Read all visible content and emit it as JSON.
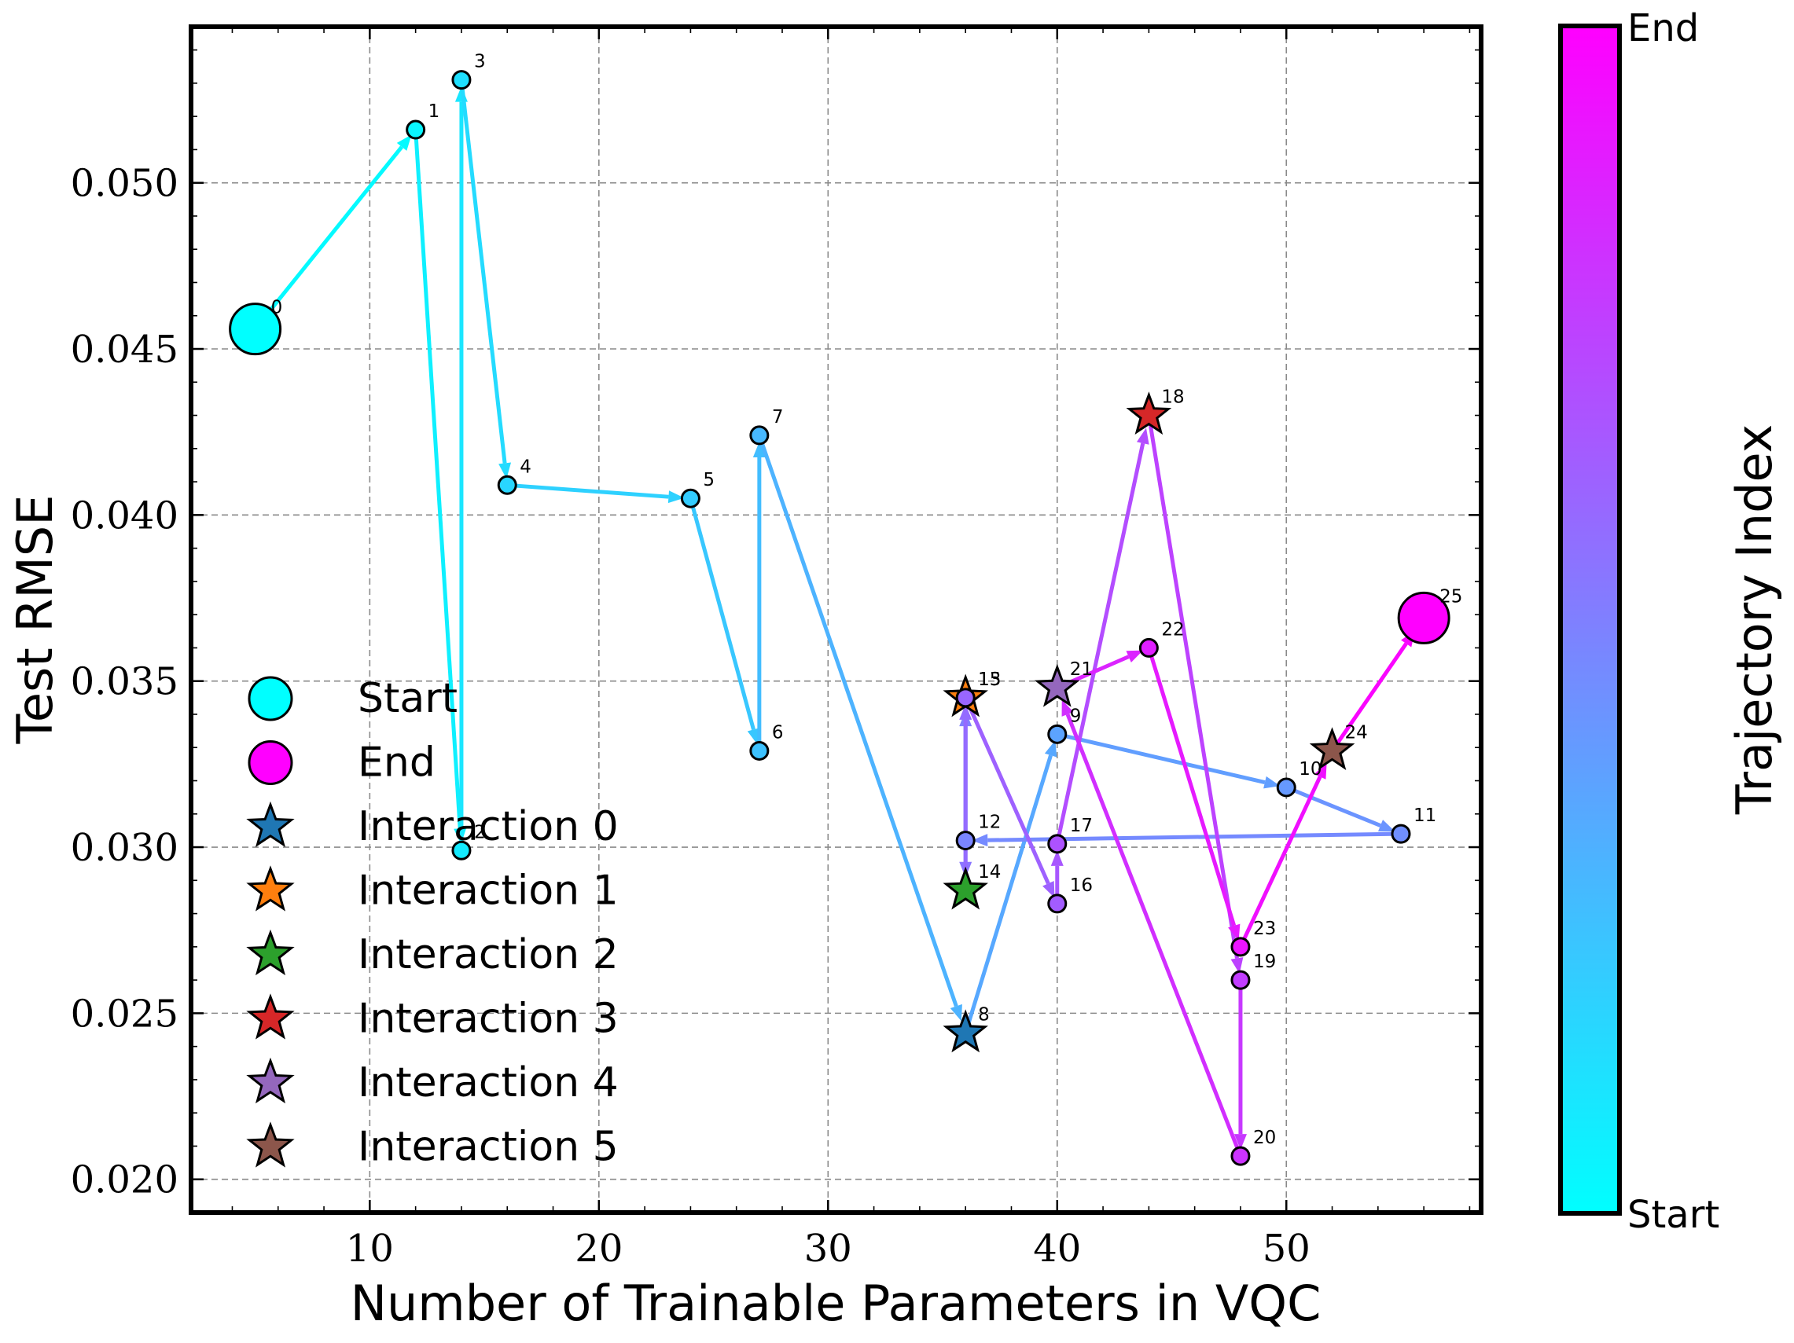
{
  "chart_data": {
    "type": "scatter",
    "xlabel": "Number of Trainable Parameters in VQC",
    "ylabel": "Test RMSE",
    "xlim": [
      2.2,
      58.5
    ],
    "ylim": [
      0.019,
      0.0547
    ],
    "x_ticks": [
      10,
      20,
      30,
      40,
      50
    ],
    "y_ticks": [
      0.02,
      0.025,
      0.03,
      0.035,
      0.04,
      0.045,
      0.05
    ],
    "x_tick_labels": [
      "10",
      "20",
      "30",
      "40",
      "50"
    ],
    "y_tick_labels": [
      "0.020",
      "0.025",
      "0.030",
      "0.035",
      "0.040",
      "0.045",
      "0.050"
    ],
    "grid": true,
    "legend_position": "lower-left",
    "trajectory": [
      {
        "index": "0",
        "x": 5,
        "y": 0.0456
      },
      {
        "index": "1",
        "x": 12,
        "y": 0.0516
      },
      {
        "index": "2",
        "x": 14,
        "y": 0.0299
      },
      {
        "index": "3",
        "x": 14,
        "y": 0.0531
      },
      {
        "index": "4",
        "x": 16,
        "y": 0.0409
      },
      {
        "index": "5",
        "x": 24,
        "y": 0.0405
      },
      {
        "index": "6",
        "x": 27,
        "y": 0.0329
      },
      {
        "index": "7",
        "x": 27,
        "y": 0.0424
      },
      {
        "index": "8",
        "x": 36,
        "y": 0.0244
      },
      {
        "index": "9",
        "x": 40,
        "y": 0.0334
      },
      {
        "index": "10",
        "x": 50,
        "y": 0.0318
      },
      {
        "index": "11",
        "x": 55,
        "y": 0.0304
      },
      {
        "index": "12",
        "x": 36,
        "y": 0.0302
      },
      {
        "index": "13",
        "x": 36,
        "y": 0.0345
      },
      {
        "index": "14",
        "x": 36,
        "y": 0.0287
      },
      {
        "index": "15",
        "x": 36,
        "y": 0.0345
      },
      {
        "index": "16",
        "x": 40,
        "y": 0.0283
      },
      {
        "index": "17",
        "x": 40,
        "y": 0.0301
      },
      {
        "index": "18",
        "x": 44,
        "y": 0.043
      },
      {
        "index": "19",
        "x": 48,
        "y": 0.026
      },
      {
        "index": "20",
        "x": 48,
        "y": 0.0207
      },
      {
        "index": "21",
        "x": 40,
        "y": 0.0348
      },
      {
        "index": "22",
        "x": 44,
        "y": 0.036
      },
      {
        "index": "23",
        "x": 48,
        "y": 0.027
      },
      {
        "index": "24",
        "x": 52,
        "y": 0.0329
      },
      {
        "index": "25",
        "x": 56,
        "y": 0.0369
      }
    ],
    "interactions": [
      {
        "label": "Interaction 0",
        "point_index": 8,
        "color": "#1f77b4"
      },
      {
        "label": "Interaction 1",
        "point_index": 13,
        "color": "#ff7f0e"
      },
      {
        "label": "Interaction 2",
        "point_index": 14,
        "color": "#2ca02c"
      },
      {
        "label": "Interaction 3",
        "point_index": 18,
        "color": "#d62728"
      },
      {
        "label": "Interaction 4",
        "point_index": 21,
        "color": "#9467bd"
      },
      {
        "label": "Interaction 5",
        "point_index": 24,
        "color": "#8c564b"
      }
    ],
    "legend": [
      {
        "label": "Start",
        "marker": "circle",
        "color": "#00ffff"
      },
      {
        "label": "End",
        "marker": "circle",
        "color": "#ff00ff"
      },
      {
        "label": "Interaction 0",
        "marker": "star",
        "color": "#1f77b4"
      },
      {
        "label": "Interaction 1",
        "marker": "star",
        "color": "#ff7f0e"
      },
      {
        "label": "Interaction 2",
        "marker": "star",
        "color": "#2ca02c"
      },
      {
        "label": "Interaction 3",
        "marker": "star",
        "color": "#d62728"
      },
      {
        "label": "Interaction 4",
        "marker": "star",
        "color": "#9467bd"
      },
      {
        "label": "Interaction 5",
        "marker": "star",
        "color": "#8c564b"
      }
    ],
    "colorbar": {
      "label": "Trajectory Index",
      "tick_labels": [
        "Start",
        "End"
      ],
      "colormap_start": "#00ffff",
      "colormap_end": "#ff00ff"
    }
  }
}
